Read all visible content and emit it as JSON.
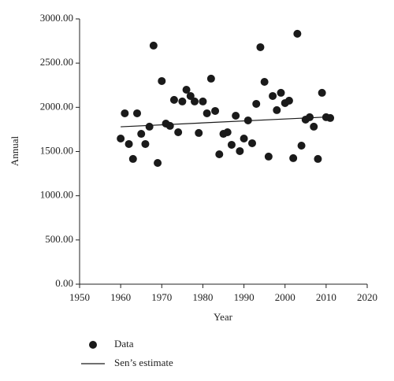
{
  "chart_data": {
    "type": "scatter",
    "x_label": "Year",
    "y_label": "Annual",
    "xlim": [
      1950,
      2020
    ],
    "xticks": [
      1950,
      1960,
      1970,
      1980,
      1990,
      2000,
      2010,
      2020
    ],
    "ylim": [
      0,
      3000
    ],
    "yticks": [
      {
        "value": 0,
        "label": "0.00"
      },
      {
        "value": 500,
        "label": "500.00"
      },
      {
        "value": 1000,
        "label": "1000.00"
      },
      {
        "value": 1500,
        "label": "1500.00"
      },
      {
        "value": 2000,
        "label": "2000.00"
      },
      {
        "value": 2500,
        "label": "2500.00"
      },
      {
        "value": 3000,
        "label": "3000.00"
      }
    ],
    "series": [
      {
        "name": "Data",
        "type": "scatter",
        "color": "#1a1a1a",
        "x": [
          1960,
          1961,
          1962,
          1963,
          1964,
          1965,
          1966,
          1967,
          1968,
          1969,
          1970,
          1971,
          1972,
          1973,
          1974,
          1975,
          1976,
          1977,
          1978,
          1979,
          1980,
          1981,
          1982,
          1983,
          1984,
          1985,
          1986,
          1987,
          1988,
          1989,
          1990,
          1991,
          1992,
          1993,
          1994,
          1995,
          1996,
          1997,
          1998,
          1999,
          2000,
          2001,
          2002,
          2003,
          2004,
          2005,
          2006,
          2007,
          2008,
          2009,
          2010,
          2011
        ],
        "values": [
          1647,
          1932,
          1585,
          1416,
          1932,
          1700,
          1585,
          1781,
          2698,
          1371,
          2297,
          1816,
          1790,
          2084,
          1718,
          2066,
          2199,
          2128,
          2066,
          1710,
          2066,
          1932,
          2324,
          1959,
          1469,
          1700,
          1718,
          1576,
          1905,
          1505,
          1647,
          1852,
          1594,
          2039,
          2680,
          2288,
          1443,
          2128,
          1968,
          2164,
          2048,
          2075,
          1425,
          2832,
          1567,
          1861,
          1888,
          1781,
          1416,
          2164,
          1888,
          1879
        ]
      },
      {
        "name": "Sen’s estimate",
        "type": "line",
        "color": "#1a1a1a",
        "x": [
          1960,
          2010
        ],
        "values": [
          1780,
          1890
        ]
      }
    ]
  }
}
